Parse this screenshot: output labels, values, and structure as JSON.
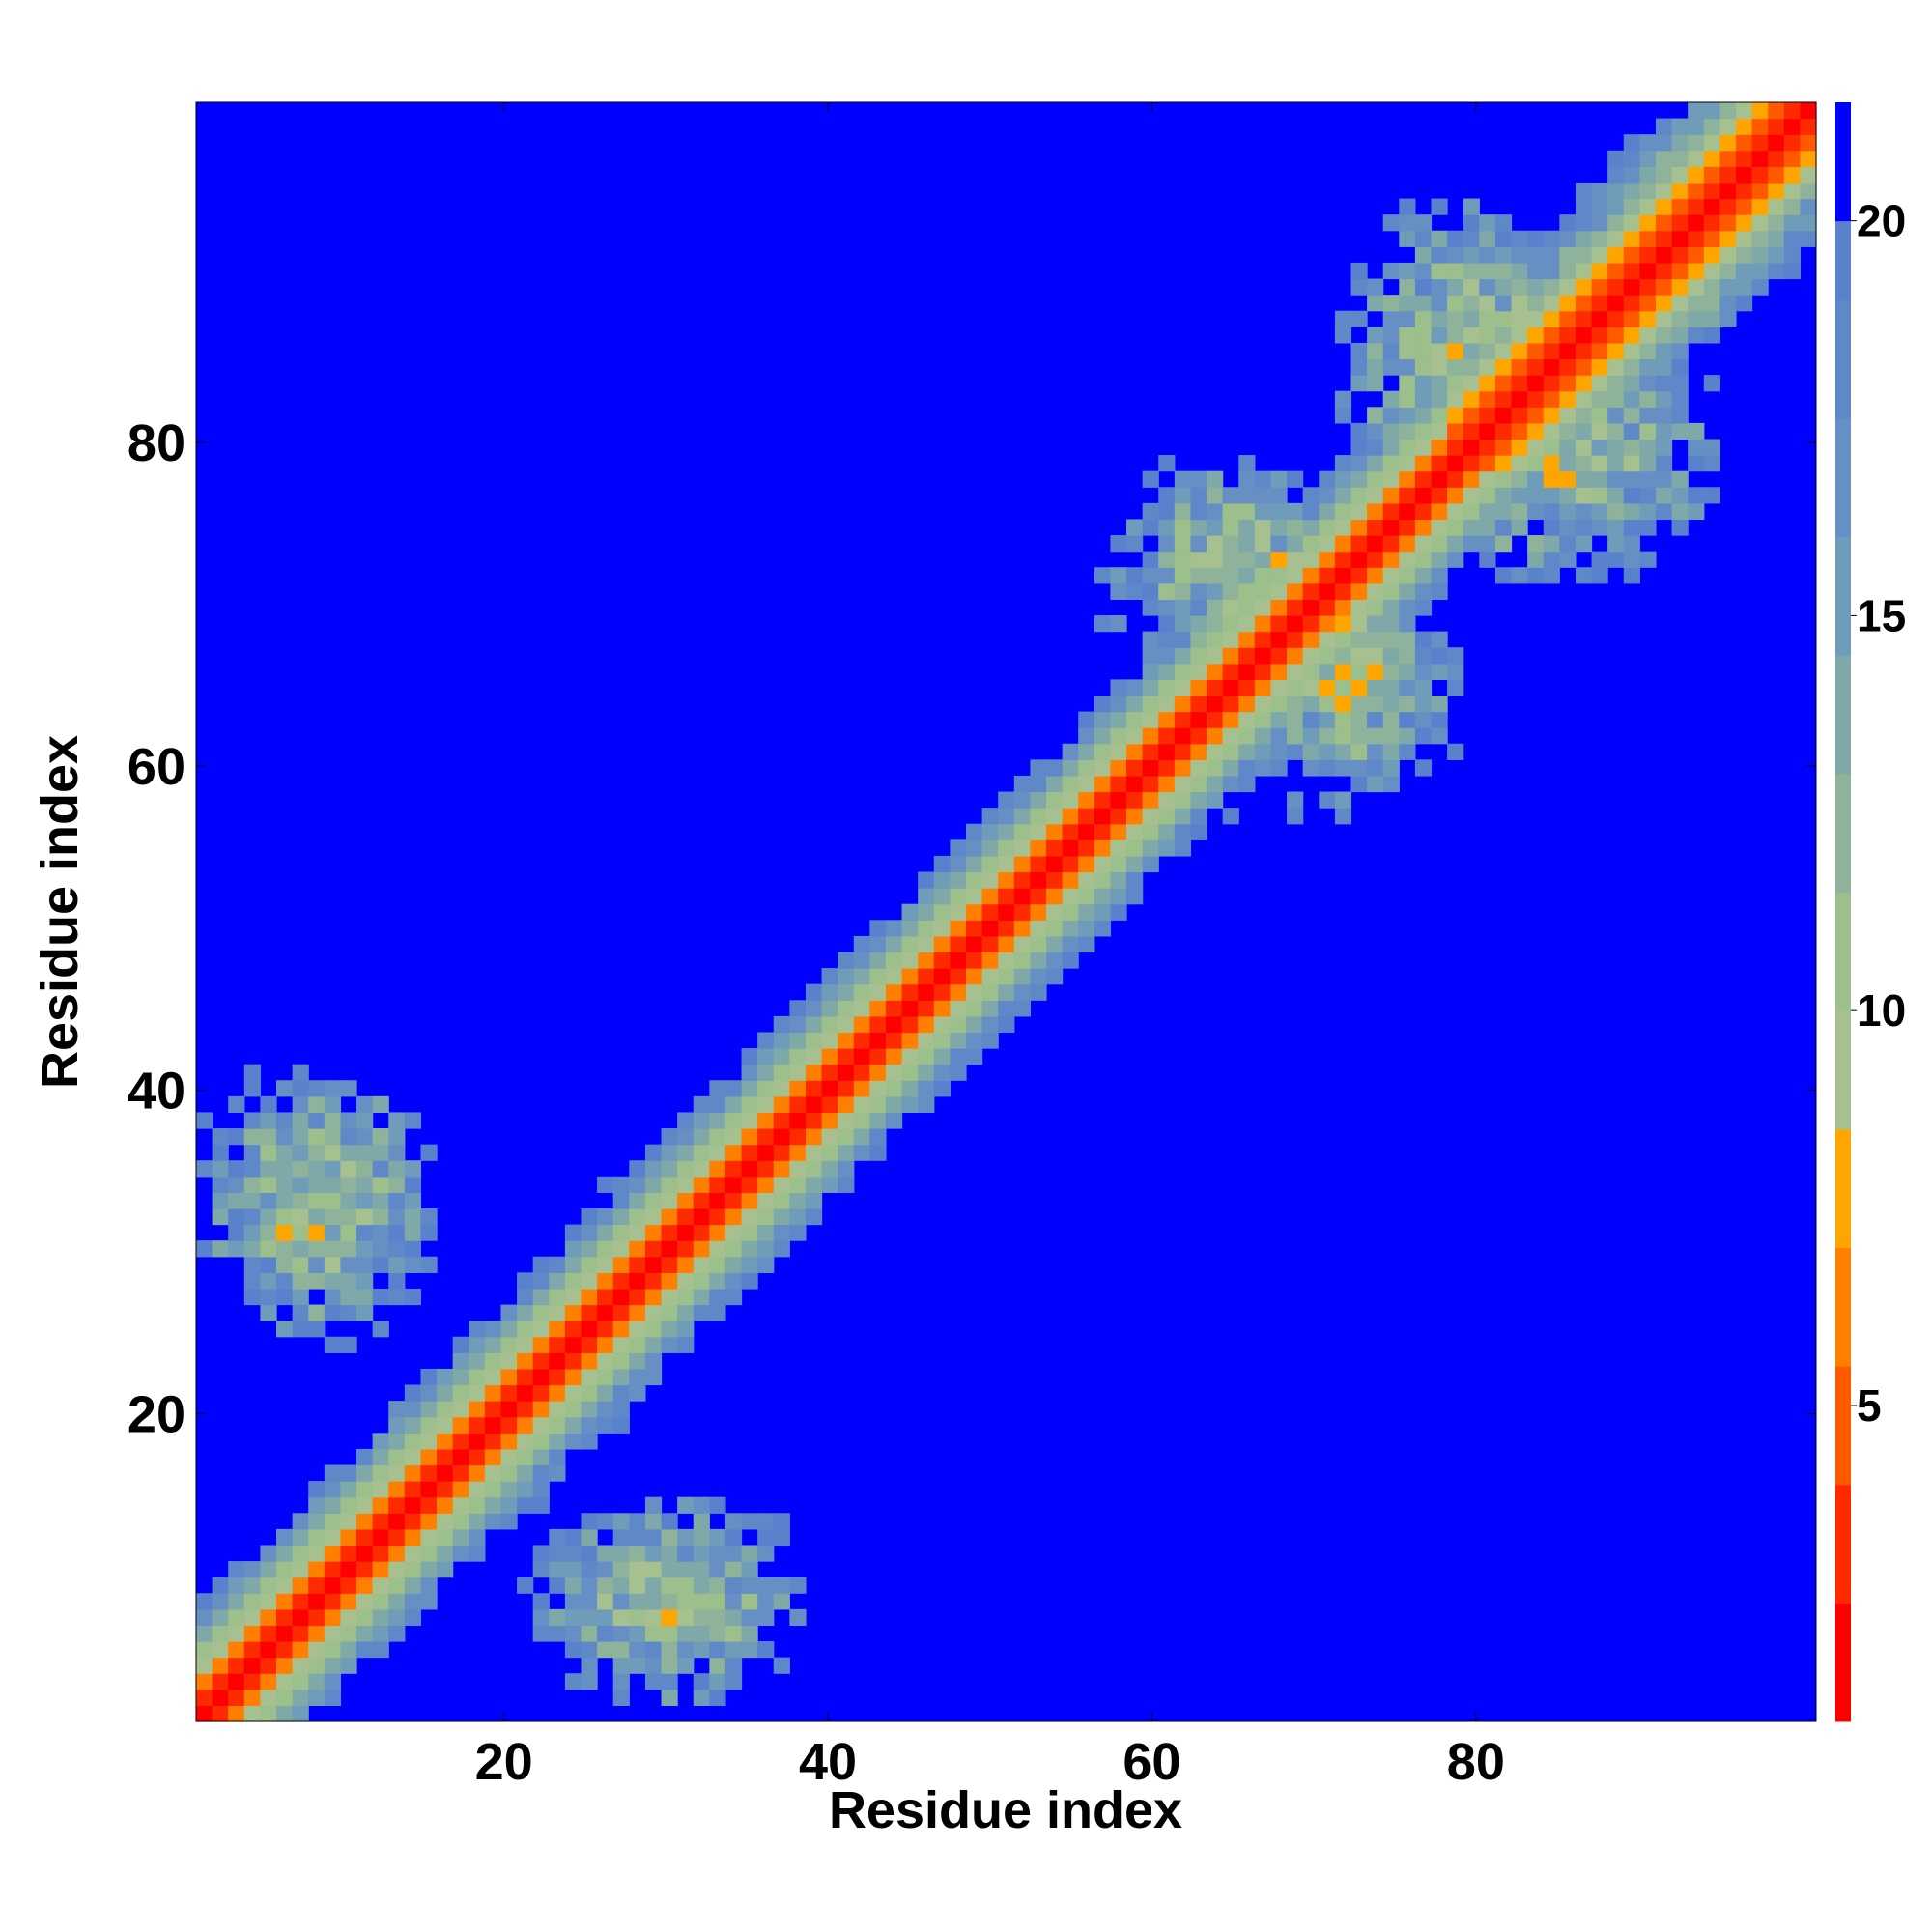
{
  "chart_data": {
    "type": "heatmap",
    "title": "",
    "xlabel": "Residue index",
    "ylabel": "Residue index",
    "n_residues": 101,
    "xlim": [
      1,
      101
    ],
    "ylim": [
      1,
      101
    ],
    "x_ticks": [
      20,
      40,
      60,
      80
    ],
    "y_ticks": [
      20,
      40,
      60,
      80
    ],
    "colorbar": {
      "range": [
        1,
        21.5
      ],
      "ticks": [
        5,
        10,
        15,
        20
      ],
      "levels": [
        {
          "from": 1,
          "to": 2.5,
          "color": "#ff0000"
        },
        {
          "from": 2.5,
          "to": 4,
          "color": "#ff2a00"
        },
        {
          "from": 4,
          "to": 5.5,
          "color": "#ff5a00"
        },
        {
          "from": 5.5,
          "to": 7,
          "color": "#ff7f00"
        },
        {
          "from": 7,
          "to": 8.5,
          "color": "#ffa500"
        },
        {
          "from": 8.5,
          "to": 10,
          "color": "#a7c08f"
        },
        {
          "from": 10,
          "to": 11.5,
          "color": "#9dbf8c"
        },
        {
          "from": 11.5,
          "to": 13,
          "color": "#8fb39a"
        },
        {
          "from": 13,
          "to": 14.5,
          "color": "#7fa8a8"
        },
        {
          "from": 14.5,
          "to": 16,
          "color": "#6f9cb8"
        },
        {
          "from": 16,
          "to": 17.5,
          "color": "#6690c4"
        },
        {
          "from": 17.5,
          "to": 19,
          "color": "#5e88c8"
        },
        {
          "from": 19,
          "to": 20,
          "color": "#5a82cc"
        },
        {
          "from": 20,
          "to": 21.5,
          "color": "#0000ff"
        }
      ]
    },
    "description_model": {
      "diagonal_band_slope_per_residue": 2.6,
      "cutoff": 20,
      "clusters": [
        {
          "x": 8,
          "y": 33,
          "sx": 7,
          "sy": 8,
          "depth": 9
        },
        {
          "x": 30,
          "y": 8,
          "sx": 8,
          "sy": 6,
          "depth": 9
        },
        {
          "x": 72,
          "y": 66,
          "sx": 5,
          "sy": 6,
          "depth": 5
        },
        {
          "x": 66,
          "y": 72,
          "sx": 6,
          "sy": 5,
          "depth": 5
        },
        {
          "x": 86,
          "y": 80,
          "sx": 6,
          "sy": 5,
          "depth": 4
        },
        {
          "x": 80,
          "y": 86,
          "sx": 5,
          "sy": 6,
          "depth": 4
        }
      ]
    }
  }
}
